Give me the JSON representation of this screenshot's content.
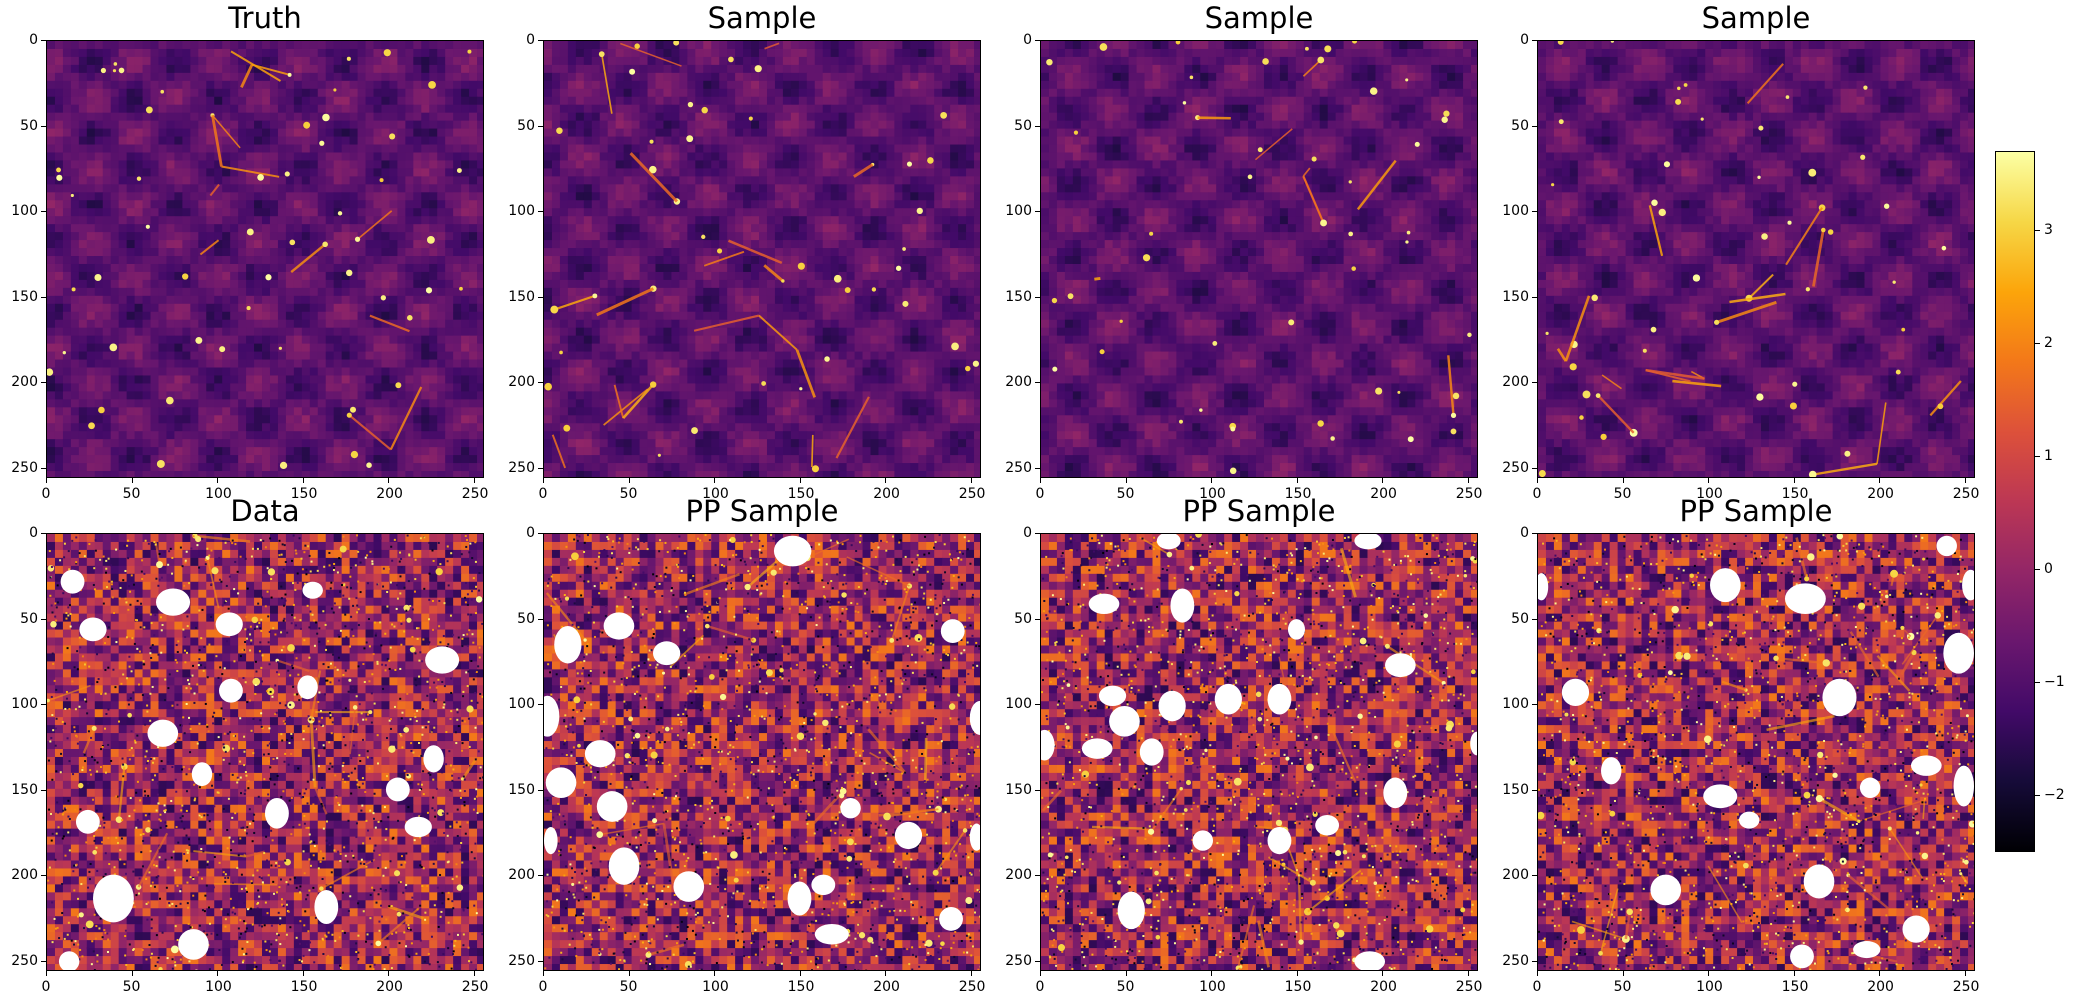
{
  "chart_data": {
    "type": "heatmap",
    "colormap": "inferno",
    "image_size": [
      256,
      256
    ],
    "xticks": [
      0,
      50,
      100,
      150,
      200,
      250
    ],
    "yticks": [
      0,
      50,
      100,
      150,
      200,
      250
    ],
    "xlim": [
      0,
      256
    ],
    "ylim": [
      256,
      0
    ],
    "panels": [
      {
        "title": "Truth",
        "row": 0,
        "col": 0,
        "kind": "field",
        "masks": []
      },
      {
        "title": "Sample",
        "row": 0,
        "col": 1,
        "kind": "field",
        "masks": []
      },
      {
        "title": "Sample",
        "row": 0,
        "col": 2,
        "kind": "field",
        "masks": []
      },
      {
        "title": "Sample",
        "row": 0,
        "col": 3,
        "kind": "field",
        "masks": []
      },
      {
        "title": "Data",
        "row": 1,
        "col": 0,
        "kind": "noisy",
        "masks": [
          {
            "cx": 15,
            "cy": 28,
            "rx": 7,
            "ry": 7
          },
          {
            "cx": 27,
            "cy": 56,
            "rx": 8,
            "ry": 7
          },
          {
            "cx": 74,
            "cy": 40,
            "rx": 10,
            "ry": 8
          },
          {
            "cx": 107,
            "cy": 53,
            "rx": 8,
            "ry": 7
          },
          {
            "cx": 156,
            "cy": 33,
            "rx": 6,
            "ry": 5
          },
          {
            "cx": 108,
            "cy": 92,
            "rx": 7,
            "ry": 7
          },
          {
            "cx": 153,
            "cy": 90,
            "rx": 6,
            "ry": 7
          },
          {
            "cx": 232,
            "cy": 74,
            "rx": 10,
            "ry": 8
          },
          {
            "cx": 68,
            "cy": 117,
            "rx": 9,
            "ry": 8
          },
          {
            "cx": 91,
            "cy": 141,
            "rx": 6,
            "ry": 7
          },
          {
            "cx": 135,
            "cy": 164,
            "rx": 7,
            "ry": 9
          },
          {
            "cx": 227,
            "cy": 132,
            "rx": 6,
            "ry": 8
          },
          {
            "cx": 206,
            "cy": 150,
            "rx": 7,
            "ry": 7
          },
          {
            "cx": 24,
            "cy": 169,
            "rx": 7,
            "ry": 7
          },
          {
            "cx": 218,
            "cy": 172,
            "rx": 8,
            "ry": 6
          },
          {
            "cx": 39,
            "cy": 214,
            "rx": 12,
            "ry": 14
          },
          {
            "cx": 164,
            "cy": 219,
            "rx": 7,
            "ry": 10
          },
          {
            "cx": 86,
            "cy": 241,
            "rx": 9,
            "ry": 9
          },
          {
            "cx": 13,
            "cy": 251,
            "rx": 6,
            "ry": 6
          }
        ]
      },
      {
        "title": "PP Sample",
        "row": 1,
        "col": 1,
        "kind": "noisy",
        "masks": [
          {
            "cx": 146,
            "cy": 10,
            "rx": 11,
            "ry": 9
          },
          {
            "cx": 14,
            "cy": 65,
            "rx": 8,
            "ry": 11
          },
          {
            "cx": 44,
            "cy": 54,
            "rx": 9,
            "ry": 8
          },
          {
            "cx": 72,
            "cy": 70,
            "rx": 8,
            "ry": 7
          },
          {
            "cx": 240,
            "cy": 57,
            "rx": 7,
            "ry": 7
          },
          {
            "cx": 2,
            "cy": 107,
            "rx": 7,
            "ry": 12
          },
          {
            "cx": 33,
            "cy": 129,
            "rx": 9,
            "ry": 8
          },
          {
            "cx": 10,
            "cy": 146,
            "rx": 9,
            "ry": 9
          },
          {
            "cx": 40,
            "cy": 160,
            "rx": 9,
            "ry": 9
          },
          {
            "cx": 256,
            "cy": 108,
            "rx": 6,
            "ry": 10
          },
          {
            "cx": 180,
            "cy": 161,
            "rx": 6,
            "ry": 6
          },
          {
            "cx": 4,
            "cy": 180,
            "rx": 4,
            "ry": 8
          },
          {
            "cx": 47,
            "cy": 195,
            "rx": 9,
            "ry": 11
          },
          {
            "cx": 85,
            "cy": 207,
            "rx": 9,
            "ry": 9
          },
          {
            "cx": 214,
            "cy": 177,
            "rx": 8,
            "ry": 8
          },
          {
            "cx": 254,
            "cy": 178,
            "rx": 4,
            "ry": 8
          },
          {
            "cx": 150,
            "cy": 214,
            "rx": 7,
            "ry": 10
          },
          {
            "cx": 164,
            "cy": 206,
            "rx": 7,
            "ry": 6
          },
          {
            "cx": 239,
            "cy": 226,
            "rx": 7,
            "ry": 7
          },
          {
            "cx": 169,
            "cy": 235,
            "rx": 10,
            "ry": 6
          }
        ]
      },
      {
        "title": "PP Sample",
        "row": 1,
        "col": 2,
        "kind": "noisy",
        "masks": [
          {
            "cx": 75,
            "cy": 4,
            "rx": 7,
            "ry": 5
          },
          {
            "cx": 192,
            "cy": 4,
            "rx": 8,
            "ry": 5
          },
          {
            "cx": 37,
            "cy": 41,
            "rx": 9,
            "ry": 6
          },
          {
            "cx": 83,
            "cy": 42,
            "rx": 7,
            "ry": 10
          },
          {
            "cx": 150,
            "cy": 56,
            "rx": 5,
            "ry": 6
          },
          {
            "cx": 211,
            "cy": 77,
            "rx": 9,
            "ry": 7
          },
          {
            "cx": 42,
            "cy": 95,
            "rx": 8,
            "ry": 6
          },
          {
            "cx": 77,
            "cy": 101,
            "rx": 8,
            "ry": 9
          },
          {
            "cx": 110,
            "cy": 97,
            "rx": 8,
            "ry": 9
          },
          {
            "cx": 140,
            "cy": 97,
            "rx": 7,
            "ry": 9
          },
          {
            "cx": 49,
            "cy": 110,
            "rx": 9,
            "ry": 9
          },
          {
            "cx": 2,
            "cy": 124,
            "rx": 6,
            "ry": 9
          },
          {
            "cx": 33,
            "cy": 126,
            "rx": 9,
            "ry": 6
          },
          {
            "cx": 65,
            "cy": 128,
            "rx": 7,
            "ry": 8
          },
          {
            "cx": 256,
            "cy": 123,
            "rx": 4,
            "ry": 7
          },
          {
            "cx": 208,
            "cy": 152,
            "rx": 7,
            "ry": 9
          },
          {
            "cx": 95,
            "cy": 180,
            "rx": 6,
            "ry": 6
          },
          {
            "cx": 140,
            "cy": 180,
            "rx": 7,
            "ry": 8
          },
          {
            "cx": 168,
            "cy": 171,
            "rx": 7,
            "ry": 6
          },
          {
            "cx": 53,
            "cy": 221,
            "rx": 8,
            "ry": 11
          },
          {
            "cx": 193,
            "cy": 251,
            "rx": 9,
            "ry": 6
          }
        ]
      },
      {
        "title": "PP Sample",
        "row": 1,
        "col": 3,
        "kind": "noisy",
        "masks": [
          {
            "cx": 240,
            "cy": 7,
            "rx": 6,
            "ry": 6
          },
          {
            "cx": 110,
            "cy": 30,
            "rx": 9,
            "ry": 10
          },
          {
            "cx": 157,
            "cy": 38,
            "rx": 12,
            "ry": 9
          },
          {
            "cx": 2,
            "cy": 31,
            "rx": 4,
            "ry": 8
          },
          {
            "cx": 254,
            "cy": 30,
            "rx": 5,
            "ry": 9
          },
          {
            "cx": 247,
            "cy": 70,
            "rx": 9,
            "ry": 12
          },
          {
            "cx": 22,
            "cy": 93,
            "rx": 8,
            "ry": 8
          },
          {
            "cx": 177,
            "cy": 96,
            "rx": 10,
            "ry": 11
          },
          {
            "cx": 43,
            "cy": 139,
            "rx": 6,
            "ry": 8
          },
          {
            "cx": 107,
            "cy": 154,
            "rx": 10,
            "ry": 7
          },
          {
            "cx": 124,
            "cy": 168,
            "rx": 6,
            "ry": 5
          },
          {
            "cx": 195,
            "cy": 149,
            "rx": 6,
            "ry": 6
          },
          {
            "cx": 228,
            "cy": 136,
            "rx": 9,
            "ry": 6
          },
          {
            "cx": 250,
            "cy": 148,
            "rx": 6,
            "ry": 12
          },
          {
            "cx": 75,
            "cy": 209,
            "rx": 9,
            "ry": 9
          },
          {
            "cx": 165,
            "cy": 204,
            "rx": 9,
            "ry": 10
          },
          {
            "cx": 222,
            "cy": 232,
            "rx": 8,
            "ry": 8
          },
          {
            "cx": 155,
            "cy": 248,
            "rx": 7,
            "ry": 7
          },
          {
            "cx": 193,
            "cy": 244,
            "rx": 8,
            "ry": 5
          }
        ]
      }
    ],
    "colorbar": {
      "min": -2.5,
      "max": 3.7,
      "ticks": [
        -2,
        -1,
        0,
        1,
        2,
        3
      ],
      "tick_labels": [
        "−2",
        "−1",
        "0",
        "1",
        "2",
        "3"
      ]
    }
  }
}
